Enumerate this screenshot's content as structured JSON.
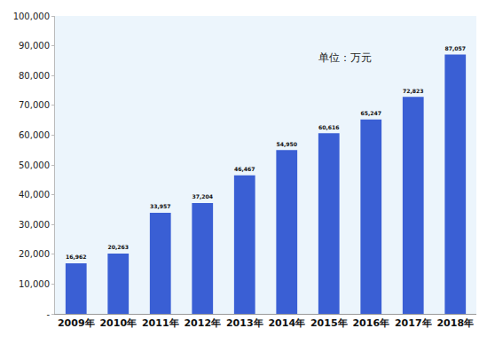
{
  "chart_data": {
    "type": "bar",
    "annotations": [
      "单位：万元"
    ],
    "categories": [
      "2009年",
      "2010年",
      "2011年",
      "2012年",
      "2013年",
      "2014年",
      "2015年",
      "2016年",
      "2017年",
      "2018年"
    ],
    "values": [
      16962,
      20263,
      33957,
      37204,
      46467,
      54950,
      60616,
      65247,
      72823,
      87057
    ],
    "value_labels": [
      "16,962",
      "20,263",
      "33,957",
      "37,204",
      "46,467",
      "54,950",
      "60,616",
      "65,247",
      "72,823",
      "87,057"
    ],
    "data_labels": true,
    "color": "#3a5fd4",
    "ylim": [
      0,
      100000
    ],
    "yticks": [
      {
        "value": 0,
        "label": "-"
      },
      {
        "value": 10000,
        "label": "10,000"
      },
      {
        "value": 20000,
        "label": "20,000"
      },
      {
        "value": 30000,
        "label": "30,000"
      },
      {
        "value": 40000,
        "label": "40,000"
      },
      {
        "value": 50000,
        "label": "50,000"
      },
      {
        "value": 60000,
        "label": "60,000"
      },
      {
        "value": 70000,
        "label": "70,000"
      },
      {
        "value": 80000,
        "label": "80,000"
      },
      {
        "value": 90000,
        "label": "90,000"
      },
      {
        "value": 100000,
        "label": "100,000"
      }
    ],
    "grid": false
  }
}
